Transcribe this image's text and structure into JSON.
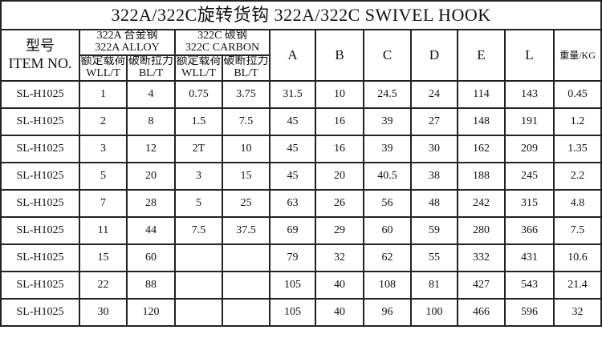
{
  "title": "322A/322C旋转货钩   322A/322C SWIVEL HOOK",
  "headers": {
    "item_cn": "型号",
    "item_en": "ITEM NO.",
    "alloy_cn": "322A 合金钢",
    "alloy_en": "322A ALLOY",
    "carbon_cn": "322C 碳钢",
    "carbon_en": "322C CARBON",
    "wll_cn": "额定载荷",
    "wll_en": "WLL/T",
    "bl_cn": "破断拉力",
    "bl_en": "BL/T",
    "A": "A",
    "B": "B",
    "C": "C",
    "D": "D",
    "E": "E",
    "L": "L",
    "weight": "重量/KG"
  },
  "rows": [
    [
      "SL-H1025",
      "1",
      "4",
      "0.75",
      "3.75",
      "31.5",
      "10",
      "24.5",
      "24",
      "114",
      "143",
      "0.45"
    ],
    [
      "SL-H1025",
      "2",
      "8",
      "1.5",
      "7.5",
      "45",
      "16",
      "39",
      "27",
      "148",
      "191",
      "1.2"
    ],
    [
      "SL-H1025",
      "3",
      "12",
      "2T",
      "10",
      "45",
      "16",
      "39",
      "30",
      "162",
      "209",
      "1.35"
    ],
    [
      "SL-H1025",
      "5",
      "20",
      "3",
      "15",
      "45",
      "20",
      "40.5",
      "38",
      "188",
      "245",
      "2.2"
    ],
    [
      "SL-H1025",
      "7",
      "28",
      "5",
      "25",
      "63",
      "26",
      "56",
      "48",
      "242",
      "315",
      "4.8"
    ],
    [
      "SL-H1025",
      "11",
      "44",
      "7.5",
      "37.5",
      "69",
      "29",
      "60",
      "59",
      "280",
      "366",
      "7.5"
    ],
    [
      "SL-H1025",
      "15",
      "60",
      "",
      "",
      "79",
      "32",
      "62",
      "55",
      "332",
      "431",
      "10.6"
    ],
    [
      "SL-H1025",
      "22",
      "88",
      "",
      "",
      "105",
      "40",
      "108",
      "81",
      "427",
      "543",
      "21.4"
    ],
    [
      "SL-H1025",
      "30",
      "120",
      "",
      "",
      "105",
      "40",
      "96",
      "100",
      "466",
      "596",
      "32"
    ]
  ]
}
